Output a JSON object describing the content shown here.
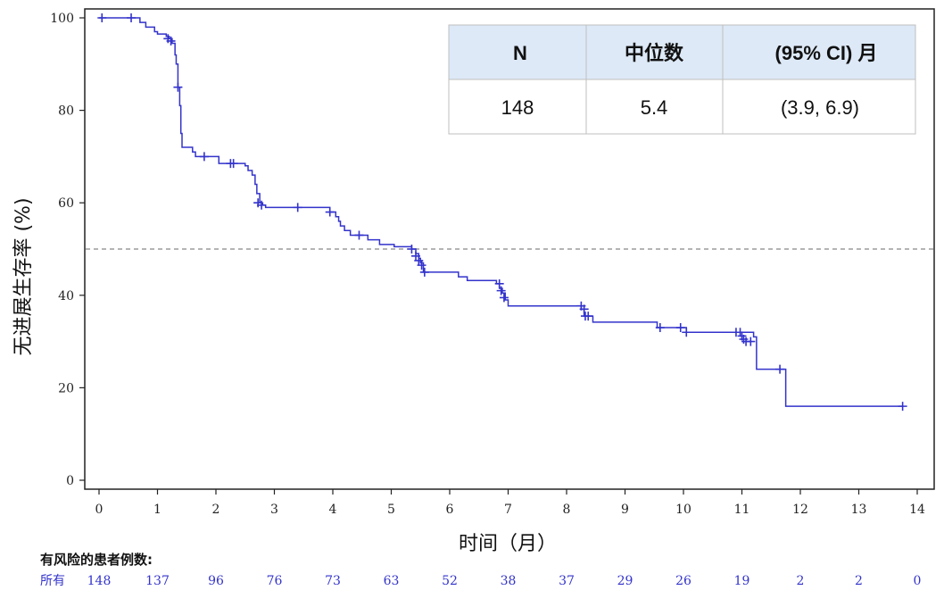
{
  "chart_data": {
    "type": "line",
    "subtype": "kaplan-meier-step",
    "title": "",
    "xlabel": "时间（月）",
    "ylabel": "无进展生存率 (%)",
    "xlim": [
      -0.25,
      14.3
    ],
    "ylim": [
      -2,
      102
    ],
    "x_ticks": [
      0,
      1,
      2,
      3,
      4,
      5,
      6,
      7,
      8,
      9,
      10,
      11,
      12,
      13,
      14
    ],
    "y_ticks": [
      0,
      20,
      40,
      60,
      80,
      100
    ],
    "grid": false,
    "reference_line": {
      "y": 50,
      "style": "dashed",
      "color": "#888888"
    },
    "series": [
      {
        "color": "#3333cc",
        "steps": [
          [
            0,
            100
          ],
          [
            0.7,
            99
          ],
          [
            0.8,
            98
          ],
          [
            0.95,
            97
          ],
          [
            1.0,
            96.5
          ],
          [
            1.15,
            96
          ],
          [
            1.2,
            95.5
          ],
          [
            1.25,
            94.5
          ],
          [
            1.3,
            92
          ],
          [
            1.32,
            90
          ],
          [
            1.35,
            85
          ],
          [
            1.38,
            81
          ],
          [
            1.4,
            75
          ],
          [
            1.42,
            72
          ],
          [
            1.6,
            71
          ],
          [
            1.65,
            70
          ],
          [
            2.05,
            69
          ],
          [
            2.05,
            68.5
          ],
          [
            2.5,
            68
          ],
          [
            2.55,
            67
          ],
          [
            2.62,
            66
          ],
          [
            2.67,
            64
          ],
          [
            2.7,
            62
          ],
          [
            2.75,
            60
          ],
          [
            2.8,
            59.5
          ],
          [
            2.85,
            59
          ],
          [
            3.95,
            58
          ],
          [
            4.05,
            57
          ],
          [
            4.1,
            56
          ],
          [
            4.13,
            55
          ],
          [
            4.2,
            54
          ],
          [
            4.3,
            53
          ],
          [
            4.6,
            52
          ],
          [
            4.8,
            51
          ],
          [
            5.05,
            50.5
          ],
          [
            5.35,
            50
          ],
          [
            5.42,
            49
          ],
          [
            5.47,
            48
          ],
          [
            5.5,
            47
          ],
          [
            5.55,
            45
          ],
          [
            6.15,
            44
          ],
          [
            6.3,
            43.2
          ],
          [
            6.8,
            42.5
          ],
          [
            6.85,
            41.5
          ],
          [
            6.9,
            40.5
          ],
          [
            6.95,
            39
          ],
          [
            7.0,
            37.7
          ],
          [
            8.25,
            37
          ],
          [
            8.3,
            35.5
          ],
          [
            8.45,
            34.2
          ],
          [
            9.55,
            33
          ],
          [
            10.05,
            32
          ],
          [
            11.2,
            31
          ],
          [
            11.25,
            24
          ],
          [
            11.75,
            16
          ],
          [
            13.75,
            16
          ]
        ],
        "censor_marks": [
          [
            0.05,
            100
          ],
          [
            0.55,
            100
          ],
          [
            1.18,
            95.5
          ],
          [
            1.23,
            95
          ],
          [
            1.35,
            85
          ],
          [
            1.8,
            70
          ],
          [
            2.25,
            68.5
          ],
          [
            2.3,
            68.5
          ],
          [
            2.72,
            60
          ],
          [
            2.78,
            59.5
          ],
          [
            3.4,
            59
          ],
          [
            3.95,
            58
          ],
          [
            4.45,
            53
          ],
          [
            5.35,
            50
          ],
          [
            5.42,
            48.5
          ],
          [
            5.47,
            47.5
          ],
          [
            5.52,
            46.5
          ],
          [
            5.57,
            45
          ],
          [
            6.85,
            42.5
          ],
          [
            6.88,
            41
          ],
          [
            6.93,
            39.5
          ],
          [
            8.25,
            37.7
          ],
          [
            8.3,
            37
          ],
          [
            8.32,
            35.5
          ],
          [
            8.37,
            35.5
          ],
          [
            9.6,
            33
          ],
          [
            9.95,
            33
          ],
          [
            10.05,
            32
          ],
          [
            10.9,
            32
          ],
          [
            10.97,
            32
          ],
          [
            11.0,
            31.2
          ],
          [
            11.03,
            30.5
          ],
          [
            11.07,
            30
          ],
          [
            11.15,
            30
          ],
          [
            11.65,
            24
          ],
          [
            13.75,
            16
          ]
        ]
      }
    ],
    "summary_table": {
      "headers": [
        "N",
        "中位数",
        "(95%  CI)  月"
      ],
      "row": [
        "148",
        "5.4",
        "(3.9, 6.9)"
      ]
    },
    "risk_table": {
      "title": "有风险的患者例数:",
      "label": "所有",
      "times": [
        0,
        1,
        2,
        3,
        4,
        5,
        6,
        7,
        8,
        9,
        10,
        11,
        12,
        13,
        14
      ],
      "counts": [
        "148",
        "137",
        "96",
        "76",
        "73",
        "63",
        "52",
        "38",
        "37",
        "29",
        "26",
        "19",
        "2",
        "2",
        "0"
      ],
      "color": "#3333cc"
    }
  }
}
